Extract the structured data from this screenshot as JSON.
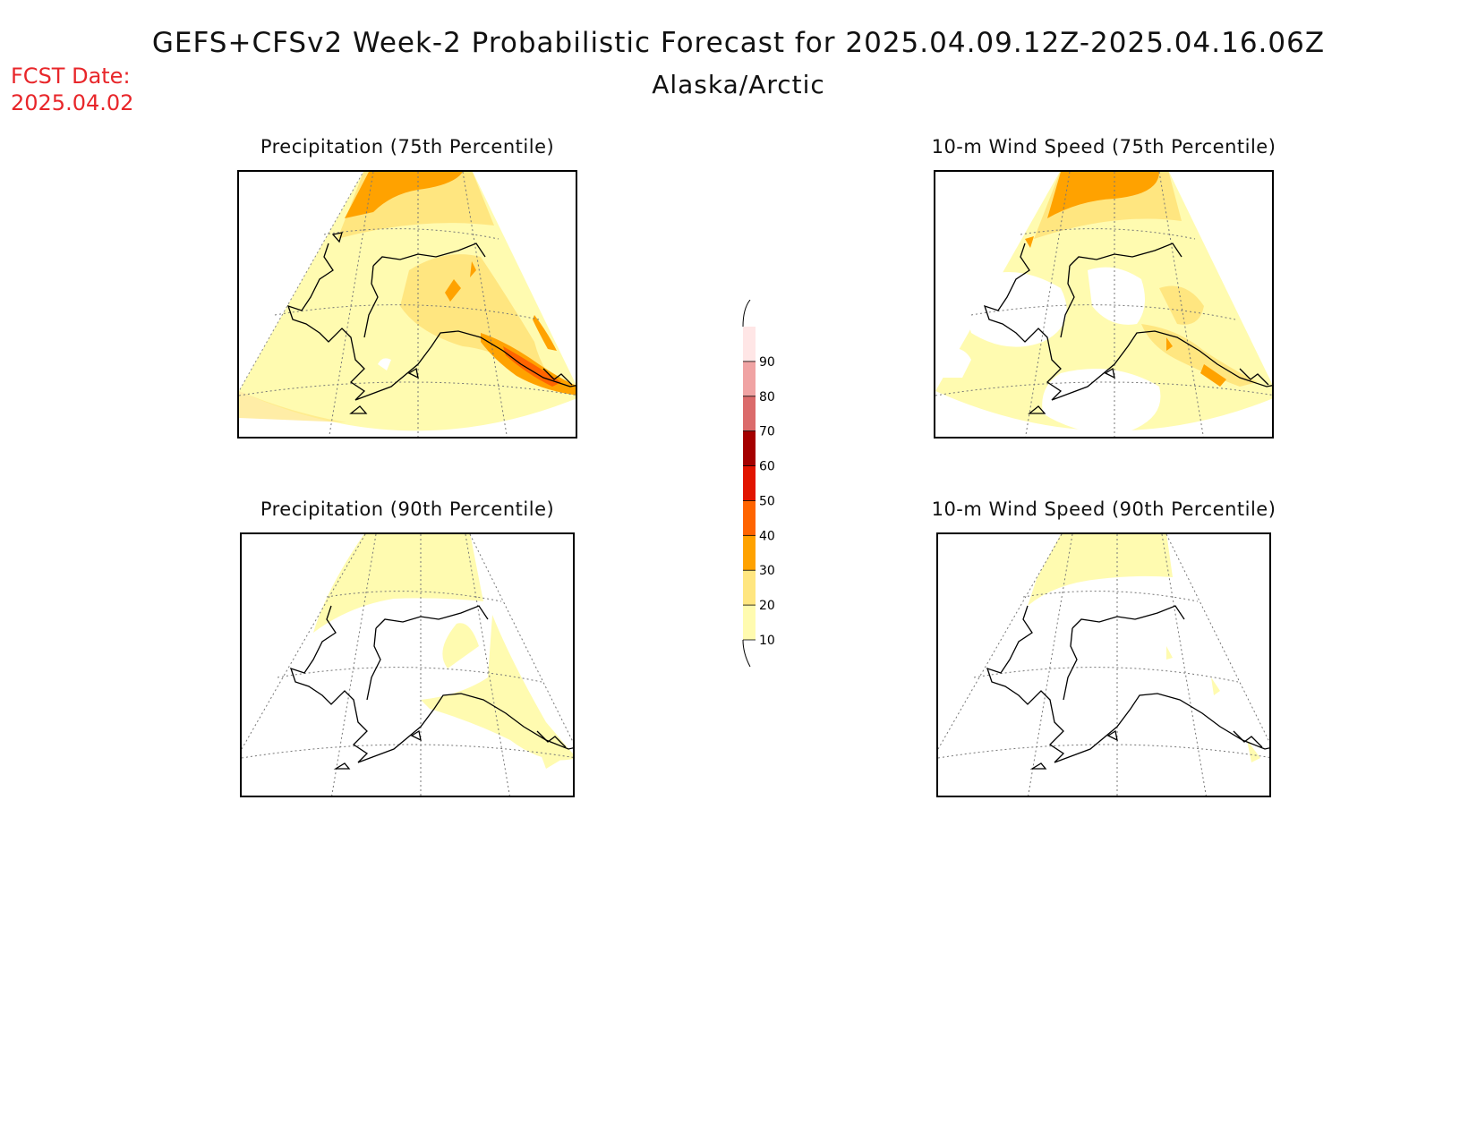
{
  "header": {
    "title": "GEFS+CFSv2 Week-2 Probabilistic Forecast for 2025.04.09.12Z-2025.04.16.06Z",
    "subtitle": "Alaska/Arctic",
    "fcst_label": "FCST Date:",
    "fcst_date": "2025.04.02"
  },
  "panels": [
    {
      "id": "precip75",
      "title": "Precipitation (75th Percentile)"
    },
    {
      "id": "wind75",
      "title": "10-m Wind Speed (75th Percentile)"
    },
    {
      "id": "precip90",
      "title": "Precipitation (90th Percentile)"
    },
    {
      "id": "wind90",
      "title": "10-m Wind Speed (90th Percentile)"
    }
  ],
  "colorbar": {
    "levels": [
      "10",
      "20",
      "30",
      "40",
      "50",
      "60",
      "70",
      "80",
      "90"
    ],
    "colors": [
      "#fffbb0",
      "#ffe680",
      "#ffa200",
      "#ff6400",
      "#e11400",
      "#a50000",
      "#db6b6b",
      "#f0a3a3",
      "#ffe6e6"
    ]
  }
}
